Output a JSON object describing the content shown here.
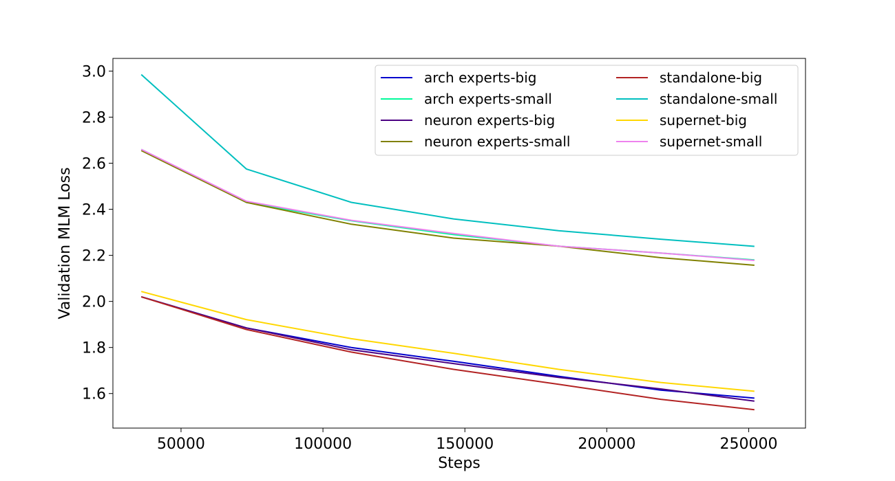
{
  "chart_data": {
    "type": "line",
    "title": "",
    "xlabel": "Steps",
    "ylabel": "Validation MLM Loss",
    "x": [
      36000,
      73000,
      110000,
      146000,
      183000,
      219000,
      252000
    ],
    "xlim": [
      26000,
      270000
    ],
    "ylim": [
      1.45,
      3.055
    ],
    "xticks": [
      50000,
      100000,
      150000,
      200000,
      250000
    ],
    "yticks": [
      1.6,
      1.8,
      2.0,
      2.2,
      2.4,
      2.6,
      2.8,
      3.0
    ],
    "xtick_labels": [
      "50000",
      "100000",
      "150000",
      "200000",
      "250000"
    ],
    "ytick_labels": [
      "1.6",
      "1.8",
      "2.0",
      "2.2",
      "2.4",
      "2.6",
      "2.8",
      "3.0"
    ],
    "grid": false,
    "legend": {
      "position": "top-right",
      "columns": 2
    },
    "series": [
      {
        "name": "arch experts-big",
        "color": "#0000cd",
        "values": [
          2.02,
          1.885,
          1.8,
          1.74,
          1.675,
          1.615,
          1.58
        ]
      },
      {
        "name": "arch experts-small",
        "color": "#00fa9a",
        "values": [
          2.66,
          2.43,
          2.35,
          2.29,
          2.24,
          2.21,
          2.18
        ]
      },
      {
        "name": "neuron experts-big",
        "color": "#4b0082",
        "values": [
          2.02,
          1.885,
          1.79,
          1.73,
          1.67,
          1.62,
          1.567
        ]
      },
      {
        "name": "neuron experts-small",
        "color": "#808000",
        "values": [
          2.655,
          2.43,
          2.335,
          2.275,
          2.24,
          2.19,
          2.157
        ]
      },
      {
        "name": "standalone-big",
        "color": "#b22222",
        "values": [
          2.02,
          1.878,
          1.78,
          1.705,
          1.64,
          1.575,
          1.53
        ]
      },
      {
        "name": "standalone-small",
        "color": "#00bfbf",
        "values": [
          2.985,
          2.575,
          2.43,
          2.358,
          2.307,
          2.27,
          2.239
        ]
      },
      {
        "name": "supernet-big",
        "color": "#ffd700",
        "values": [
          2.043,
          1.921,
          1.838,
          1.775,
          1.705,
          1.648,
          1.61
        ]
      },
      {
        "name": "supernet-small",
        "color": "#ee82ee",
        "values": [
          2.66,
          2.435,
          2.352,
          2.295,
          2.24,
          2.21,
          2.178
        ]
      }
    ]
  }
}
